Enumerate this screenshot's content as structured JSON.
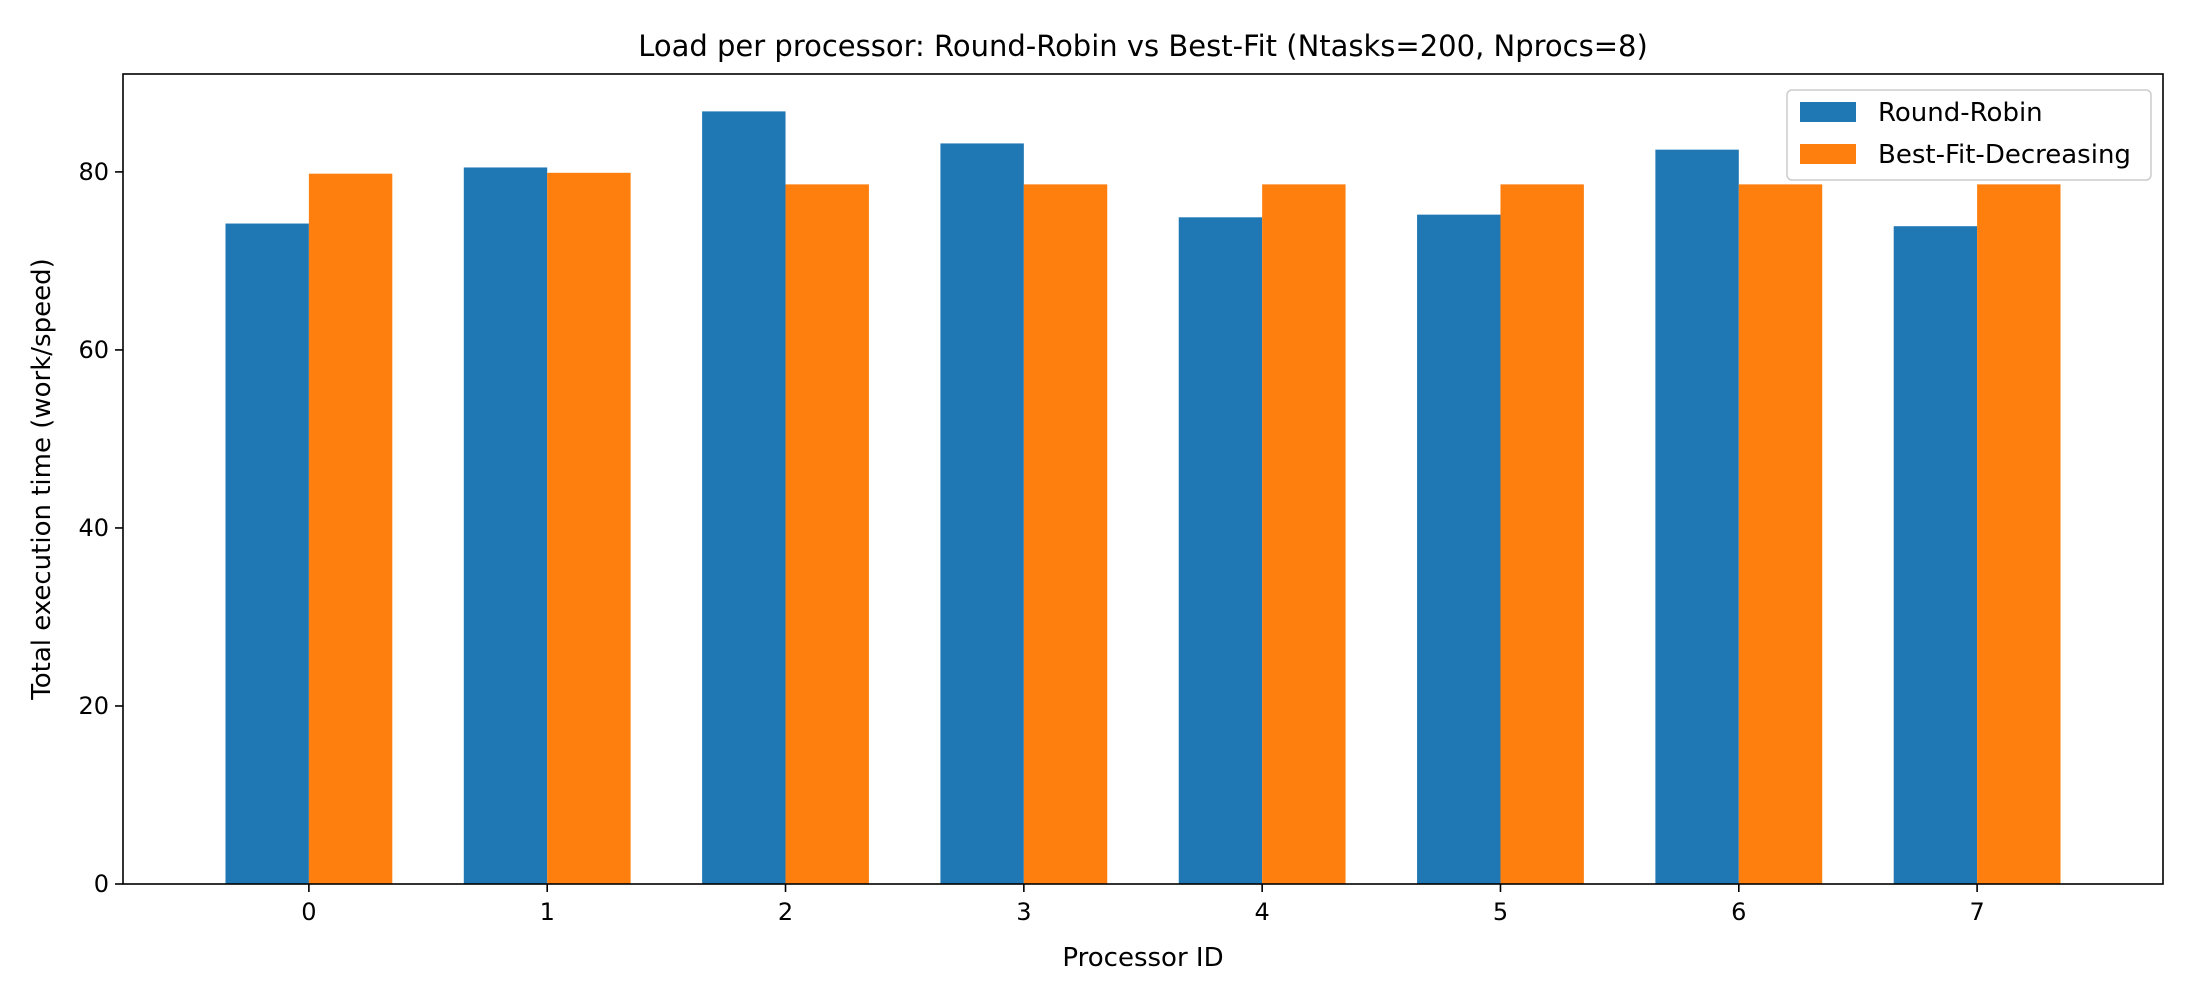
{
  "chart_data": {
    "type": "bar",
    "title": "Load per processor: Round-Robin vs Best-Fit (Ntasks=200, Nprocs=8)",
    "xlabel": "Processor ID",
    "ylabel": "Total execution time (work/speed)",
    "categories": [
      "0",
      "1",
      "2",
      "3",
      "4",
      "5",
      "6",
      "7"
    ],
    "series": [
      {
        "name": "Round-Robin",
        "color": "#1f77b4",
        "values": [
          74.2,
          80.5,
          86.8,
          83.2,
          74.9,
          75.2,
          82.5,
          73.9
        ]
      },
      {
        "name": "Best-Fit-Decreasing",
        "color": "#ff7f0e",
        "values": [
          79.8,
          79.9,
          78.6,
          78.6,
          78.6,
          78.6,
          78.6,
          78.6
        ]
      }
    ],
    "ylim": [
      0,
      91
    ],
    "yticks": [
      0,
      20,
      40,
      60,
      80
    ],
    "grid": false,
    "legend_location": "top-right"
  }
}
